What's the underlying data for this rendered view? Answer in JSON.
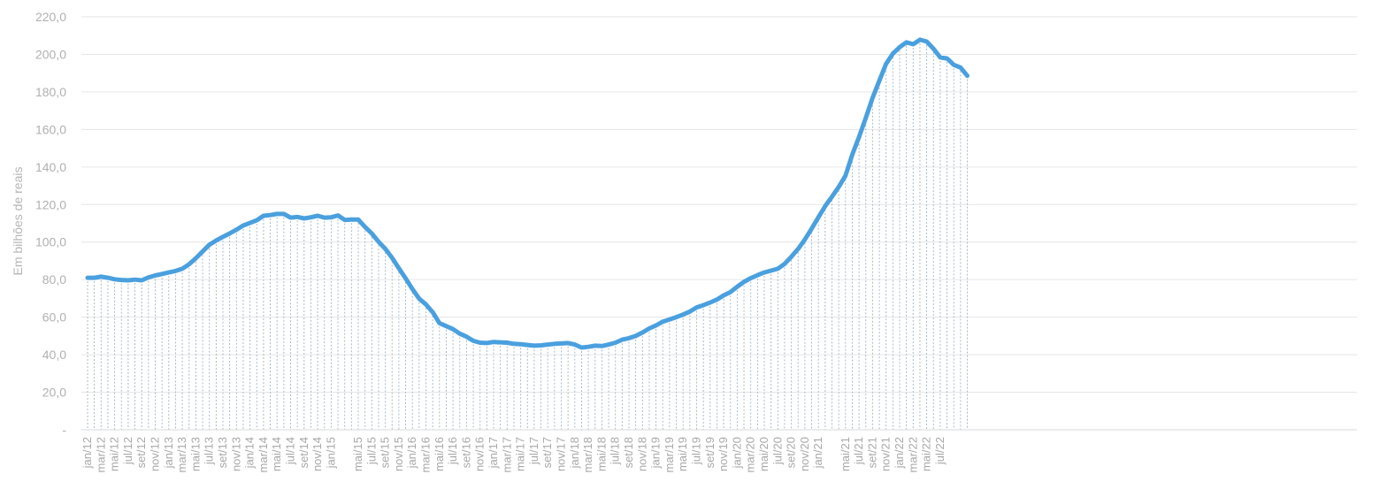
{
  "chart_data": {
    "type": "line",
    "title": "",
    "xlabel": "",
    "ylabel": "Em bilhões de reais",
    "ylim": [
      0,
      220
    ],
    "y_ticks": [
      "-",
      "20,0",
      "40,0",
      "60,0",
      "80,0",
      "100,0",
      "120,0",
      "140,0",
      "160,0",
      "180,0",
      "200,0",
      "220,0"
    ],
    "grid": "horizontal",
    "drop_lines": true,
    "x_tick_labels": [
      "jan/12",
      "mar/12",
      "mai/12",
      "jul/12",
      "set/12",
      "nov/12",
      "jan/13",
      "mar/13",
      "mai/13",
      "jul/13",
      "set/13",
      "nov/13",
      "jan/14",
      "mar/14",
      "mai/14",
      "jul/14",
      "set/14",
      "nov/14",
      "jan/15",
      "mai/15",
      "jul/15",
      "set/15",
      "nov/15",
      "jan/16",
      "mar/16",
      "mai/16",
      "jul/16",
      "set/16",
      "nov/16",
      "jan/17",
      "mar/17",
      "mai/17",
      "jul/17",
      "set/17",
      "nov/17",
      "jan/18",
      "mar/18",
      "mai/18",
      "jul/18",
      "set/18",
      "nov/18",
      "jan/19",
      "mar/19",
      "mai/19",
      "jul/19",
      "set/19",
      "nov/19",
      "jan/20",
      "mar/20",
      "mai/20",
      "jul/20",
      "set/20",
      "nov/20",
      "jan/21",
      "mai/21",
      "jul/21",
      "set/21",
      "nov/21",
      "jan/22",
      "mar/22",
      "mai/22",
      "jul/22"
    ],
    "series": [
      {
        "color": "#4aa0de",
        "x_start": "jan/12",
        "x_end": "ago/22",
        "values": [
          81.0,
          81.0,
          81.6,
          81.0,
          80.2,
          79.8,
          79.6,
          80.0,
          79.6,
          81.2,
          82.2,
          83.0,
          83.8,
          84.6,
          85.8,
          88.2,
          91.4,
          95.0,
          98.6,
          100.8,
          102.8,
          104.6,
          106.6,
          108.8,
          110.2,
          111.6,
          114.0,
          114.4,
          115.0,
          115.0,
          113.0,
          113.4,
          112.6,
          113.2,
          114.0,
          113.0,
          113.2,
          114.2,
          111.8,
          112.0,
          112.0,
          108.0,
          104.6,
          100.2,
          96.4,
          91.6,
          86.0,
          80.6,
          75.0,
          69.8,
          66.8,
          62.6,
          56.8,
          55.2,
          53.6,
          51.2,
          49.6,
          47.4,
          46.4,
          46.2,
          46.8,
          46.6,
          46.4,
          45.8,
          45.6,
          45.2,
          44.8,
          45.0,
          45.4,
          45.8,
          46.0,
          46.2,
          45.4,
          43.8,
          44.2,
          44.8,
          44.6,
          45.4,
          46.4,
          48.0,
          48.8,
          50.0,
          51.8,
          54.0,
          55.6,
          57.6,
          58.8,
          60.0,
          61.4,
          63.0,
          65.2,
          66.4,
          67.8,
          69.4,
          71.6,
          73.4,
          76.2,
          78.8,
          80.8,
          82.4,
          83.8,
          84.8,
          85.8,
          88.4,
          92.2,
          96.4,
          101.4,
          107.2,
          113.2,
          119.2,
          124.2,
          129.4,
          135.4,
          146.6,
          156.0,
          166.2,
          176.8,
          186.0,
          195.0,
          200.4,
          203.8,
          206.4,
          205.4,
          207.8,
          206.8,
          203.0,
          198.4,
          197.8,
          194.4,
          193.0,
          188.6
        ]
      }
    ]
  }
}
